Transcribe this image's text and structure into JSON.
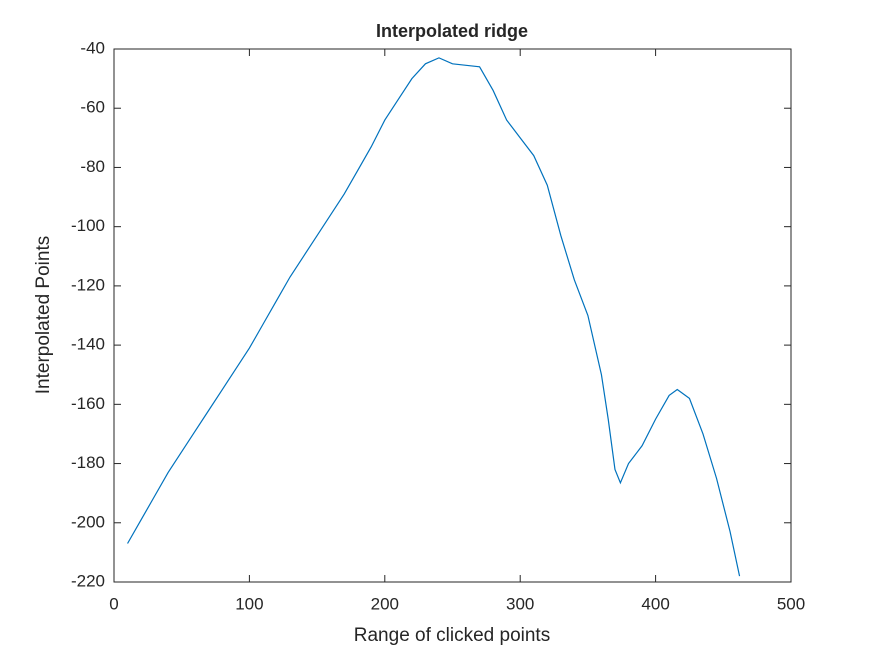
{
  "chart_data": {
    "type": "line",
    "title": "Interpolated ridge",
    "x_label": "Range of clicked points",
    "y_label": "Interpolated Points",
    "xlim": [
      0,
      500
    ],
    "xticks": [
      0,
      100,
      200,
      300,
      400,
      500
    ],
    "ylim": [
      -220,
      -40
    ],
    "yticks": [
      -220,
      -200,
      -180,
      -160,
      -140,
      -120,
      -100,
      -80,
      -60,
      -40
    ],
    "grid": false,
    "x": [
      10,
      20,
      30,
      40,
      50,
      60,
      70,
      80,
      90,
      100,
      110,
      120,
      130,
      140,
      150,
      160,
      170,
      180,
      190,
      200,
      210,
      220,
      230,
      240,
      250,
      260,
      270,
      280,
      290,
      300,
      310,
      320,
      330,
      340,
      350,
      360,
      365,
      370,
      374,
      380,
      390,
      400,
      410,
      416,
      425,
      435,
      445,
      455,
      462
    ],
    "series": [
      {
        "color": "#0072bd",
        "values": [
          -207,
          -199,
          -191,
          -183,
          -176,
          -169,
          -162,
          -155,
          -148,
          -141,
          -133,
          -125,
          -117,
          -110,
          -103,
          -96,
          -89,
          -81,
          -73,
          -64,
          -57,
          -50,
          -45,
          -43,
          -45,
          -45.5,
          -46,
          -54,
          -64,
          -70,
          -76,
          -86,
          -103,
          -118,
          -130,
          -150,
          -165,
          -182,
          -186.5,
          -180,
          -174,
          -165,
          -157,
          -155,
          -158,
          -170,
          -185,
          -203,
          -218
        ]
      }
    ]
  }
}
